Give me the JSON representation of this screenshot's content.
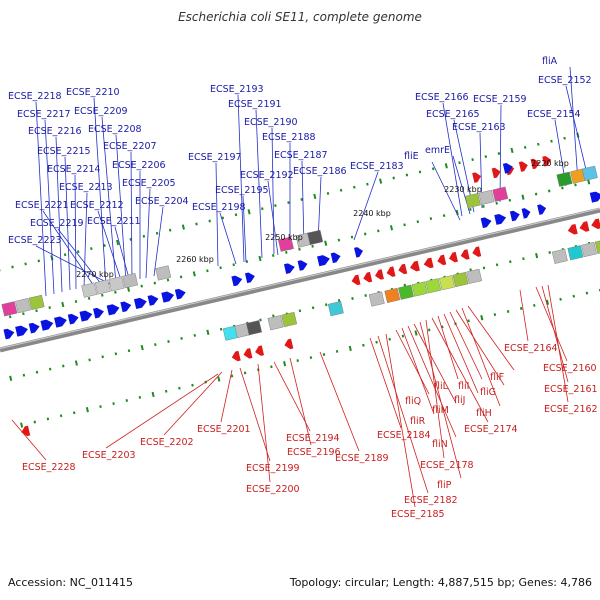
{
  "title": "Escherichia coli SE11, complete genome",
  "footer": {
    "accession": "Accession: NC_011415",
    "topology": "Topology: circular; Length: 4,887,515 bp; Genes: 4,786"
  },
  "colors": {
    "forward": "#0a14e0",
    "reverse": "#e01818",
    "line_blue": "#2030c8",
    "line_red": "#d02020",
    "tick": "#1f8a1f"
  },
  "scale_labels": [
    "2270 kbp",
    "2260 kbp",
    "2250 kbp",
    "2240 kbp",
    "2230 kbp",
    "2220 kbp"
  ],
  "top_labels": [
    "ECSE_2218",
    "ECSE_2217",
    "ECSE_2216",
    "ECSE_2215",
    "ECSE_2214",
    "ECSE_2213",
    "ECSE_2221",
    "ECSE_2219",
    "ECSE_2223",
    "ECSE_2210",
    "ECSE_2209",
    "ECSE_2208",
    "ECSE_2207",
    "ECSE_2206",
    "ECSE_2205",
    "ECSE_2204",
    "ECSE_2212",
    "ECSE_2211",
    "ECSE_2193",
    "ECSE_2191",
    "ECSE_2190",
    "ECSE_2188",
    "ECSE_2187",
    "ECSE_2186",
    "ECSE_2197",
    "ECSE_2192",
    "ECSE_2195",
    "ECSE_2198",
    "ECSE_2183",
    "fliE",
    "emrE",
    "ECSE_2166",
    "ECSE_2165",
    "ECSE_2163",
    "ECSE_2159",
    "fliA",
    "ECSE_2152",
    "ECSE_2154"
  ],
  "bottom_labels": [
    "ECSE_2228",
    "ECSE_2203",
    "ECSE_2202",
    "ECSE_2201",
    "ECSE_2199",
    "ECSE_2200",
    "ECSE_2194",
    "ECSE_2196",
    "ECSE_2189",
    "ECSE_2184",
    "ECSE_2182",
    "ECSE_2185",
    "fliQ",
    "fliR",
    "fliN",
    "fliM",
    "fliP",
    "ECSE_2178",
    "ECSE_2174",
    "fliL",
    "fliJ",
    "fliI",
    "fliG",
    "fliH",
    "fliF",
    "ECSE_2164",
    "ECSE_2160",
    "ECSE_2161",
    "ECSE_2162"
  ]
}
